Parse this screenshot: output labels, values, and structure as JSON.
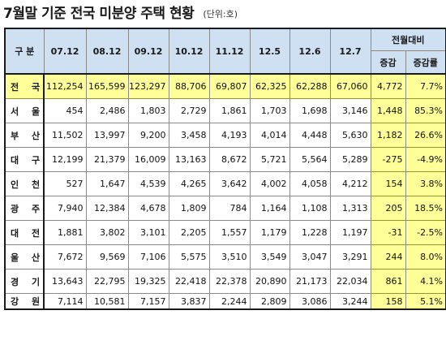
{
  "title": "7월말 기준 전국 미분양 주택 현황",
  "unit": "(단위:호)",
  "header": {
    "category": "구 분",
    "periods": [
      "07.12",
      "08.12",
      "09.12",
      "10.12",
      "11.12",
      "12.5",
      "12.6",
      "12.7"
    ],
    "mom": "전월대비",
    "change": "증감",
    "change_rate": "증감률"
  },
  "rows": [
    {
      "region": "전 국",
      "values": [
        "112,254",
        "165,599",
        "123,297",
        "88,706",
        "69,807",
        "62,325",
        "62,288",
        "67,060"
      ],
      "change": "4,772",
      "rate": "7.7%"
    },
    {
      "region": "서 울",
      "values": [
        "454",
        "2,486",
        "1,803",
        "2,729",
        "1,861",
        "1,703",
        "1,698",
        "3,146"
      ],
      "change": "1,448",
      "rate": "85.3%"
    },
    {
      "region": "부 산",
      "values": [
        "11,502",
        "13,997",
        "9,200",
        "3,458",
        "4,193",
        "4,014",
        "4,448",
        "5,630"
      ],
      "change": "1,182",
      "rate": "26.6%"
    },
    {
      "region": "대 구",
      "values": [
        "12,199",
        "21,379",
        "16,009",
        "13,163",
        "8,672",
        "5,721",
        "5,564",
        "5,289"
      ],
      "change": "-275",
      "rate": "-4.9%"
    },
    {
      "region": "인 천",
      "values": [
        "527",
        "1,647",
        "4,539",
        "4,265",
        "3,642",
        "4,002",
        "4,058",
        "4,212"
      ],
      "change": "154",
      "rate": "3.8%"
    },
    {
      "region": "광 주",
      "values": [
        "7,940",
        "12,384",
        "4,678",
        "1,809",
        "784",
        "1,164",
        "1,108",
        "1,313"
      ],
      "change": "205",
      "rate": "18.5%"
    },
    {
      "region": "대 전",
      "values": [
        "1,881",
        "3,802",
        "3,101",
        "2,205",
        "1,557",
        "1,179",
        "1,228",
        "1,197"
      ],
      "change": "-31",
      "rate": "-2.5%"
    },
    {
      "region": "울 산",
      "values": [
        "7,672",
        "9,569",
        "7,106",
        "5,575",
        "3,510",
        "3,549",
        "3,047",
        "3,291"
      ],
      "change": "244",
      "rate": "8.0%"
    },
    {
      "region": "경 기",
      "values": [
        "13,643",
        "22,795",
        "19,325",
        "22,418",
        "22,378",
        "20,890",
        "21,173",
        "22,034"
      ],
      "change": "861",
      "rate": "4.1%"
    },
    {
      "region": "강 원",
      "values": [
        "7,114",
        "10,581",
        "7,157",
        "3,837",
        "2,244",
        "2,809",
        "3,086",
        "3,244"
      ],
      "change": "158",
      "rate": "5.1%"
    }
  ]
}
